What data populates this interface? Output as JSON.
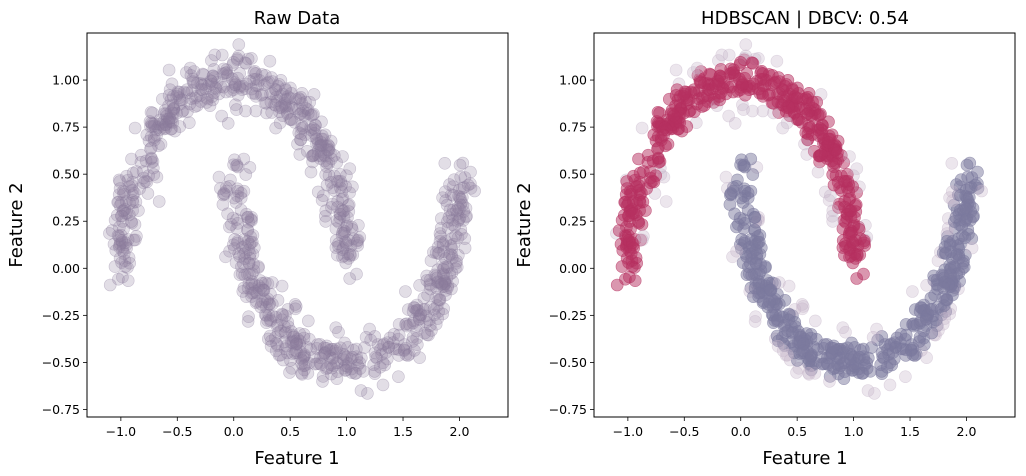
{
  "chart_data": [
    {
      "type": "scatter",
      "title": "Raw Data",
      "xlabel": "Feature 1",
      "ylabel": "Feature 2",
      "xlim": [
        -1.3,
        2.43
      ],
      "ylim": [
        -0.79,
        1.25
      ],
      "xticks": [
        -1.0,
        -0.5,
        0.0,
        0.5,
        1.0,
        1.5,
        2.0
      ],
      "yticks": [
        -0.75,
        -0.5,
        -0.25,
        0.0,
        0.25,
        0.5,
        0.75,
        1.0
      ],
      "xtick_labels": [
        "−1.0",
        "−0.5",
        "0.0",
        "0.5",
        "1.0",
        "1.5",
        "2.0"
      ],
      "ytick_labels": [
        "−0.75",
        "−0.50",
        "−0.25",
        "0.00",
        "0.25",
        "0.50",
        "0.75",
        "1.00"
      ],
      "grid": false,
      "dataset": "two interleaving half-moons, ~1000 points, noise ≈ 0.07",
      "series": [
        {
          "color": "#8a7a9c",
          "opacity": 0.25,
          "values": "all points single color"
        }
      ]
    },
    {
      "type": "scatter",
      "title": "HDBSCAN | DBCV: 0.54",
      "xlabel": "Feature 1",
      "ylabel": "Feature 2",
      "xlim": [
        -1.3,
        2.43
      ],
      "ylim": [
        -0.79,
        1.25
      ],
      "xticks": [
        -1.0,
        -0.5,
        0.0,
        0.5,
        1.0,
        1.5,
        2.0
      ],
      "yticks": [
        -0.75,
        -0.5,
        -0.25,
        0.0,
        0.25,
        0.5,
        0.75,
        1.0
      ],
      "xtick_labels": [
        "−1.0",
        "−0.5",
        "0.0",
        "0.5",
        "1.0",
        "1.5",
        "2.0"
      ],
      "ytick_labels": [
        "−0.75",
        "−0.50",
        "−0.25",
        "0.00",
        "0.25",
        "0.50",
        "0.75",
        "1.00"
      ],
      "grid": false,
      "dataset": "same two half-moons, colored by HDBSCAN cluster",
      "series": [
        {
          "color": "#b5305f",
          "opacity": 0.5,
          "values": "upper moon cluster"
        },
        {
          "color": "#7b7a9e",
          "opacity": 0.5,
          "values": "lower moon cluster"
        },
        {
          "color": "#c8b8cc",
          "opacity": 0.35,
          "values": "noise points"
        }
      ]
    }
  ]
}
